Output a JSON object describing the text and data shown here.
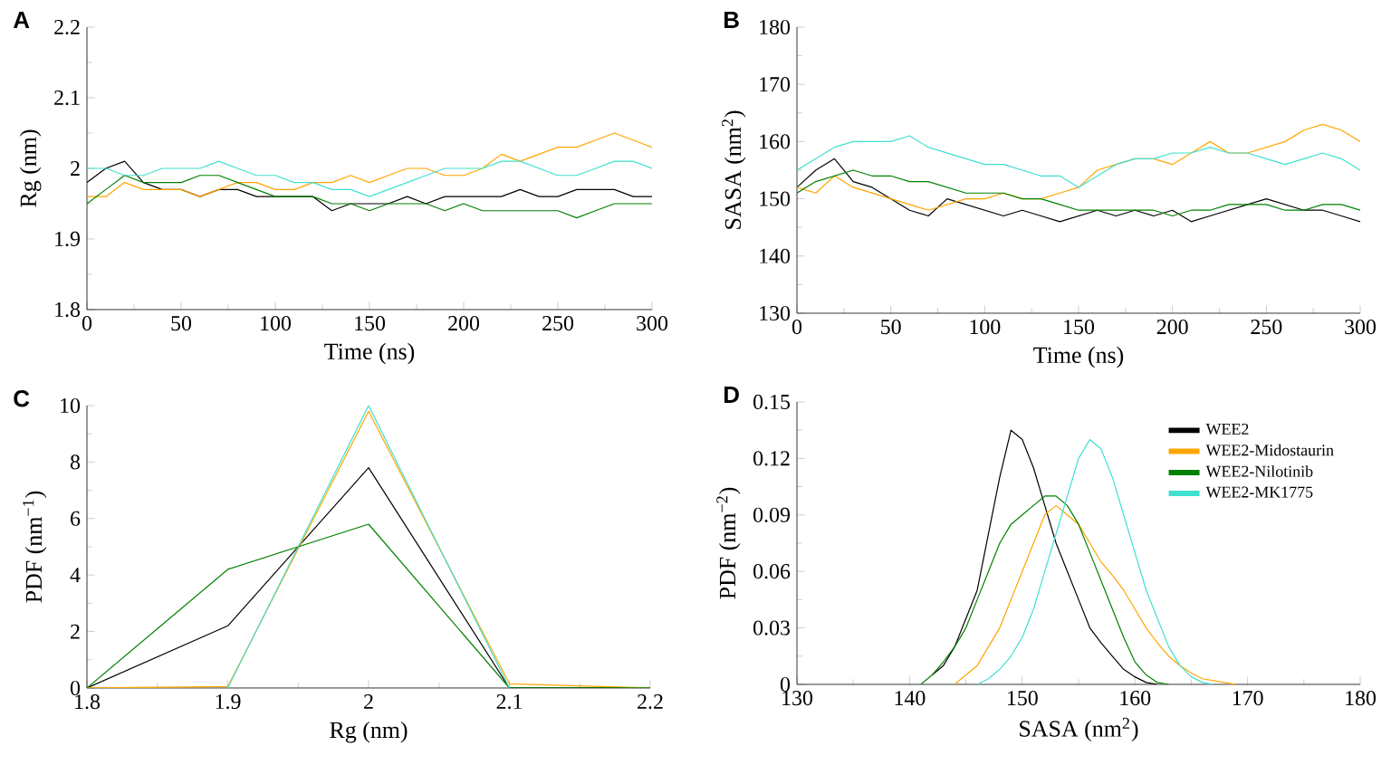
{
  "chart_data": [
    {
      "type": "line",
      "title": "A",
      "xlabel": "Time (ns)",
      "ylabel": "Rg (nm)",
      "xlim": [
        0,
        300
      ],
      "ylim": [
        1.8,
        2.2
      ],
      "xticks": [
        0,
        50,
        100,
        150,
        200,
        250,
        300
      ],
      "yticks": [
        1.8,
        1.9,
        2,
        2.1,
        2.2
      ],
      "x": [
        0,
        10,
        20,
        30,
        40,
        50,
        60,
        70,
        80,
        90,
        100,
        110,
        120,
        130,
        140,
        150,
        160,
        170,
        180,
        190,
        200,
        210,
        220,
        230,
        240,
        250,
        260,
        270,
        280,
        290,
        300
      ],
      "series": [
        {
          "color": "#000000",
          "values": [
            1.98,
            2.0,
            2.01,
            1.98,
            1.97,
            1.97,
            1.96,
            1.97,
            1.97,
            1.96,
            1.96,
            1.96,
            1.96,
            1.94,
            1.95,
            1.95,
            1.95,
            1.96,
            1.95,
            1.96,
            1.96,
            1.96,
            1.96,
            1.97,
            1.96,
            1.96,
            1.97,
            1.97,
            1.97,
            1.96,
            1.96
          ]
        },
        {
          "color": "#ffa500",
          "values": [
            1.96,
            1.96,
            1.98,
            1.97,
            1.97,
            1.97,
            1.96,
            1.97,
            1.98,
            1.98,
            1.97,
            1.97,
            1.98,
            1.98,
            1.99,
            1.98,
            1.99,
            2.0,
            2.0,
            1.99,
            1.99,
            2.0,
            2.02,
            2.01,
            2.02,
            2.03,
            2.03,
            2.04,
            2.05,
            2.04,
            2.03
          ]
        },
        {
          "color": "#008000",
          "values": [
            1.95,
            1.97,
            1.99,
            1.98,
            1.98,
            1.98,
            1.99,
            1.99,
            1.98,
            1.97,
            1.96,
            1.96,
            1.96,
            1.95,
            1.95,
            1.94,
            1.95,
            1.95,
            1.95,
            1.94,
            1.95,
            1.94,
            1.94,
            1.94,
            1.94,
            1.94,
            1.93,
            1.94,
            1.95,
            1.95,
            1.95
          ]
        },
        {
          "color": "#40e0d0",
          "values": [
            2.0,
            2.0,
            1.99,
            1.99,
            2.0,
            2.0,
            2.0,
            2.01,
            2.0,
            1.99,
            1.99,
            1.98,
            1.98,
            1.97,
            1.97,
            1.96,
            1.97,
            1.98,
            1.99,
            2.0,
            2.0,
            2.0,
            2.01,
            2.01,
            2.0,
            1.99,
            1.99,
            2.0,
            2.01,
            2.01,
            2.0
          ]
        }
      ]
    },
    {
      "type": "line",
      "title": "B",
      "xlabel": "Time (ns)",
      "ylabel": "SASA (nm$^{2}$)",
      "xlim": [
        0,
        300
      ],
      "ylim": [
        130,
        180
      ],
      "xticks": [
        0,
        50,
        100,
        150,
        200,
        250,
        300
      ],
      "yticks": [
        130,
        140,
        150,
        160,
        170,
        180
      ],
      "x": [
        0,
        10,
        20,
        30,
        40,
        50,
        60,
        70,
        80,
        90,
        100,
        110,
        120,
        130,
        140,
        150,
        160,
        170,
        180,
        190,
        200,
        210,
        220,
        230,
        240,
        250,
        260,
        270,
        280,
        290,
        300
      ],
      "series": [
        {
          "color": "#000000",
          "values": [
            152,
            155,
            157,
            153,
            152,
            150,
            148,
            147,
            150,
            149,
            148,
            147,
            148,
            147,
            146,
            147,
            148,
            147,
            148,
            147,
            148,
            146,
            147,
            148,
            149,
            150,
            149,
            148,
            148,
            147,
            146
          ]
        },
        {
          "color": "#ffa500",
          "values": [
            152,
            151,
            154,
            152,
            151,
            150,
            149,
            148,
            149,
            150,
            150,
            151,
            150,
            150,
            151,
            152,
            155,
            156,
            157,
            157,
            156,
            158,
            160,
            158,
            158,
            159,
            160,
            162,
            163,
            162,
            160
          ]
        },
        {
          "color": "#008000",
          "values": [
            151,
            153,
            154,
            155,
            154,
            154,
            153,
            153,
            152,
            151,
            151,
            151,
            150,
            150,
            149,
            148,
            148,
            148,
            148,
            148,
            147,
            148,
            148,
            149,
            149,
            149,
            148,
            148,
            149,
            149,
            148
          ]
        },
        {
          "color": "#40e0d0",
          "values": [
            155,
            157,
            159,
            160,
            160,
            160,
            161,
            159,
            158,
            157,
            156,
            156,
            155,
            154,
            154,
            152,
            154,
            156,
            157,
            157,
            158,
            158,
            159,
            158,
            158,
            157,
            156,
            157,
            158,
            157,
            155
          ]
        }
      ]
    },
    {
      "type": "line",
      "title": "C",
      "xlabel": "Rg (nm)",
      "ylabel": "PDF (nm$^{−1}$)",
      "xlim": [
        1.8,
        2.2
      ],
      "ylim": [
        0,
        10
      ],
      "xticks": [
        1.8,
        1.9,
        2,
        2.1,
        2.2
      ],
      "yticks": [
        0,
        2,
        4,
        6,
        8,
        10
      ],
      "x": [
        1.8,
        1.9,
        2.0,
        2.1,
        2.2
      ],
      "series": [
        {
          "color": "#000000",
          "values": [
            0,
            2.2,
            7.8,
            0,
            0
          ]
        },
        {
          "color": "#ffa500",
          "values": [
            0,
            0.05,
            9.8,
            0.15,
            0
          ]
        },
        {
          "color": "#008000",
          "values": [
            0,
            4.2,
            5.8,
            0,
            0
          ]
        },
        {
          "color": "#40e0d0",
          "values": [
            null,
            0,
            10,
            0,
            null
          ]
        }
      ]
    },
    {
      "type": "line",
      "title": "D",
      "xlabel": "SASA (nm$^{2}$)",
      "ylabel": "PDF (nm$^{−2}$)",
      "xlim": [
        130,
        180
      ],
      "ylim": [
        0,
        0.15
      ],
      "xticks": [
        130,
        140,
        150,
        160,
        170,
        180
      ],
      "yticks": [
        0,
        0.03,
        0.06,
        0.09,
        0.12,
        0.15
      ],
      "legend": "top right",
      "series": [
        {
          "name": "WEE2",
          "color": "#000000",
          "x": [
            142,
            143,
            144,
            145,
            146,
            147,
            148,
            149,
            150,
            151,
            152,
            153,
            154,
            155,
            156,
            157,
            158,
            159,
            160,
            161,
            162
          ],
          "values": [
            0.005,
            0.01,
            0.02,
            0.035,
            0.05,
            0.08,
            0.11,
            0.135,
            0.13,
            0.115,
            0.095,
            0.075,
            0.06,
            0.045,
            0.03,
            0.022,
            0.015,
            0.008,
            0.004,
            0.001,
            0
          ]
        },
        {
          "name": "WEE2-Midostaurin",
          "color": "#ffa500",
          "x": [
            144,
            145,
            146,
            147,
            148,
            149,
            150,
            151,
            152,
            153,
            154,
            155,
            156,
            157,
            158,
            159,
            160,
            161,
            162,
            163,
            164,
            165,
            166,
            167,
            168,
            169
          ],
          "values": [
            0,
            0.005,
            0.01,
            0.02,
            0.03,
            0.045,
            0.06,
            0.075,
            0.09,
            0.095,
            0.09,
            0.085,
            0.075,
            0.065,
            0.058,
            0.05,
            0.04,
            0.03,
            0.022,
            0.015,
            0.01,
            0.006,
            0.003,
            0.002,
            0.001,
            0
          ]
        },
        {
          "name": "WEE2-Nilotinib",
          "color": "#008000",
          "x": [
            141,
            142,
            143,
            144,
            145,
            146,
            147,
            148,
            149,
            150,
            151,
            152,
            153,
            154,
            155,
            156,
            157,
            158,
            159,
            160,
            161,
            162,
            163
          ],
          "values": [
            0,
            0.005,
            0.012,
            0.02,
            0.03,
            0.045,
            0.06,
            0.075,
            0.085,
            0.09,
            0.095,
            0.1,
            0.1,
            0.095,
            0.085,
            0.07,
            0.055,
            0.04,
            0.025,
            0.012,
            0.005,
            0.001,
            0
          ]
        },
        {
          "name": "WEE2-MK1775",
          "color": "#40e0d0",
          "x": [
            146,
            147,
            148,
            149,
            150,
            151,
            152,
            153,
            154,
            155,
            156,
            157,
            158,
            159,
            160,
            161,
            162,
            163,
            164,
            165,
            166,
            167
          ],
          "values": [
            0,
            0.003,
            0.008,
            0.015,
            0.025,
            0.04,
            0.06,
            0.08,
            0.1,
            0.12,
            0.13,
            0.125,
            0.11,
            0.09,
            0.07,
            0.05,
            0.035,
            0.02,
            0.01,
            0.004,
            0.001,
            0
          ]
        }
      ]
    }
  ]
}
